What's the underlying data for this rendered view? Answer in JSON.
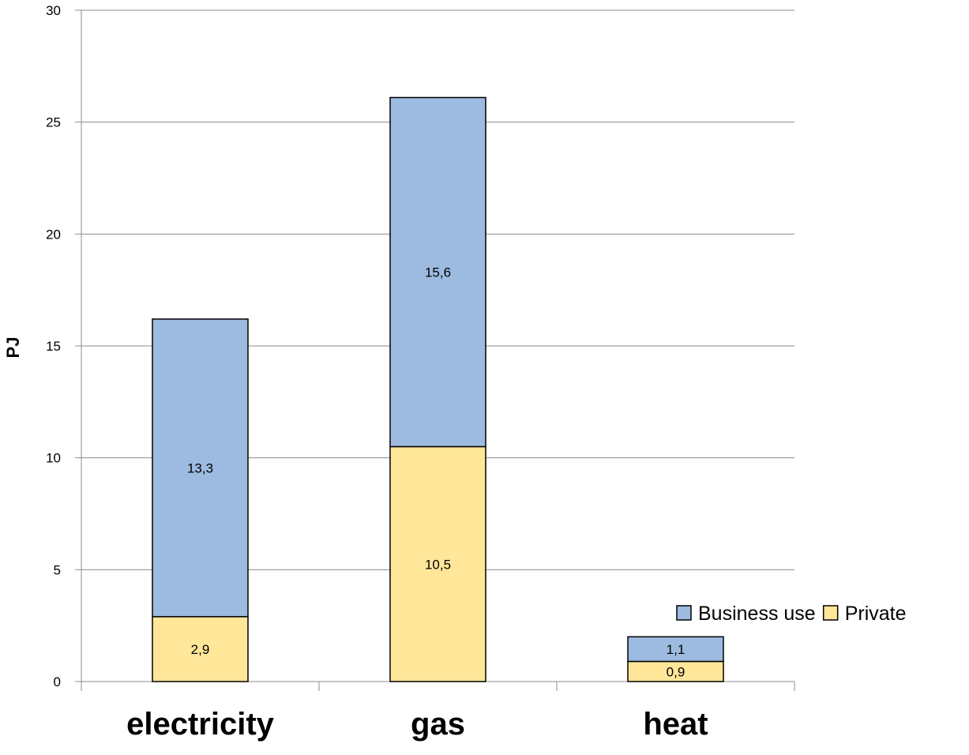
{
  "chart_data": {
    "type": "bar",
    "stacked": true,
    "categories": [
      "electricity",
      "gas",
      "heat"
    ],
    "series": [
      {
        "name": "Private",
        "values": [
          2.9,
          10.5,
          0.9
        ],
        "labels": [
          "2,9",
          "10,5",
          "0,9"
        ],
        "color": "#FFE699"
      },
      {
        "name": "Business use",
        "values": [
          13.3,
          15.6,
          1.1
        ],
        "labels": [
          "13,3",
          "15,6",
          "1,1"
        ],
        "color": "#9DBBE0"
      }
    ],
    "ylabel": "PJ",
    "xlabel": "",
    "ylim": [
      0,
      30
    ],
    "yticks": [
      0,
      5,
      10,
      15,
      20,
      25,
      30
    ],
    "ytick_labels": [
      "0",
      "5",
      "10",
      "15",
      "20",
      "25",
      "30"
    ],
    "grid": true,
    "legend": {
      "position": "right",
      "entries": [
        "Business use",
        "Private"
      ]
    }
  }
}
